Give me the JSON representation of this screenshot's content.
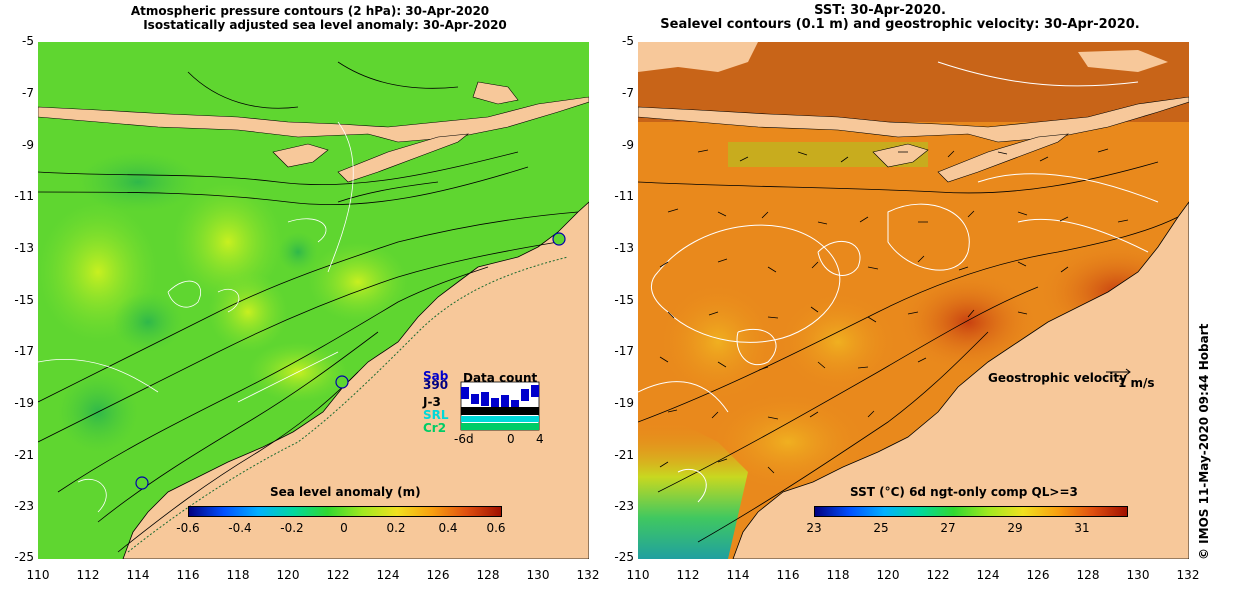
{
  "left_panel": {
    "title_line1": "Atmospheric pressure contours (2 hPa): 30-Apr-2020",
    "title_line2": "Isostatically adjusted sea level anomaly: 30-Apr-2020",
    "colorbar_label": "Sea level anomaly (m)",
    "colorbar_ticks": [
      "-0.6",
      "-0.4",
      "-0.2",
      "0",
      "0.2",
      "0.4",
      "0.6"
    ],
    "data_count": {
      "title": "Data count",
      "satellites": [
        "Sab",
        "390",
        "J-3",
        "SRL",
        "Cr2"
      ],
      "satellite_colors": [
        "#0000cc",
        "#000080",
        "#000000",
        "#00d8d8",
        "#00cc66"
      ],
      "x_ticks": [
        "-6d",
        "0",
        "4"
      ]
    }
  },
  "right_panel": {
    "title_line1": "SST: 30-Apr-2020.",
    "title_line2": "Sealevel contours (0.1 m) and geostrophic velocity: 30-Apr-2020.",
    "colorbar_label": "SST (°C) 6d ngt-only comp QL>=3",
    "colorbar_ticks": [
      "23",
      "25",
      "27",
      "29",
      "31"
    ],
    "velocity_label": "Geostrophic velocity",
    "velocity_scale": "1 m/s"
  },
  "axes": {
    "y_ticks": [
      "-5",
      "-7",
      "-9",
      "-11",
      "-13",
      "-15",
      "-17",
      "-19",
      "-21",
      "-23",
      "-25"
    ],
    "x_ticks": [
      "110",
      "112",
      "114",
      "116",
      "118",
      "120",
      "122",
      "124",
      "126",
      "128",
      "130",
      "132"
    ]
  },
  "copyright": "© IMOS 11-May-2020 09:44 Hobart",
  "colors": {
    "land": "#f7c89a",
    "sla_ocean": "#5fd630",
    "sst_ocean": "#e9891c"
  }
}
